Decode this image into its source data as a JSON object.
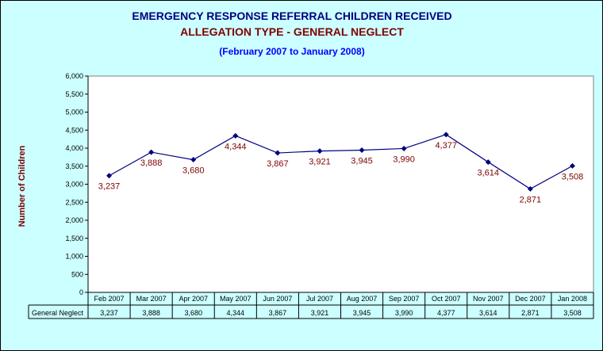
{
  "chart_data": {
    "type": "line",
    "title": "EMERGENCY RESPONSE REFERRAL CHILDREN RECEIVED",
    "subtitle": "ALLEGATION TYPE - GENERAL NEGLECT",
    "subtitle2": "(February 2007 to January 2008)",
    "ylabel": "Number of Children",
    "categories": [
      "Feb 2007",
      "Mar 2007",
      "Apr 2007",
      "May 2007",
      "Jun 2007",
      "Jul 2007",
      "Aug 2007",
      "Sep 2007",
      "Oct 2007",
      "Nov 2007",
      "Dec 2007",
      "Jan 2008"
    ],
    "series": [
      {
        "name": "General Neglect",
        "values": [
          3237,
          3888,
          3680,
          4344,
          3867,
          3921,
          3945,
          3990,
          4377,
          3614,
          2871,
          3508
        ],
        "labels": [
          "3,237",
          "3,888",
          "3,680",
          "4,344",
          "3,867",
          "3,921",
          "3,945",
          "3,990",
          "4,377",
          "3,614",
          "2,871",
          "3,508"
        ]
      }
    ],
    "yticks": [
      "0",
      "500",
      "1,000",
      "1,500",
      "2,000",
      "2,500",
      "3,000",
      "3,500",
      "4,000",
      "4,500",
      "5,000",
      "5,500",
      "6,000"
    ],
    "ylim": [
      0,
      6000
    ],
    "ystep": 500,
    "legend": "data-table-below",
    "colors": {
      "line": "#000080",
      "label": "#800000",
      "title": "#000080",
      "title2": "#800000",
      "subtitle": "#0000ff",
      "plot_bg": "#ffffff",
      "chart_bg": "#ccffff"
    }
  }
}
